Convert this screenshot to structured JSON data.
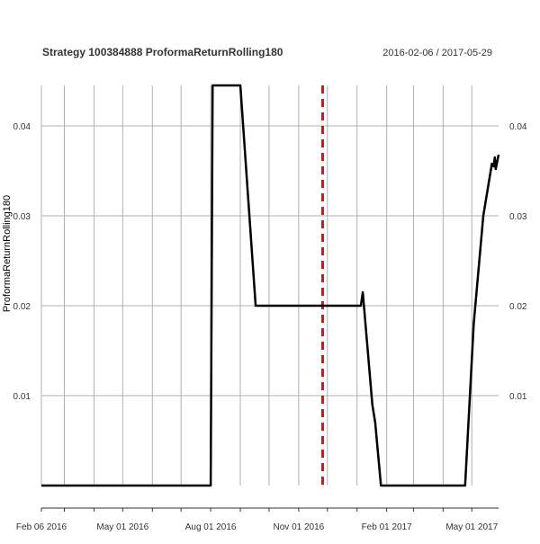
{
  "chart_data": {
    "type": "line",
    "title": "Strategy 100384888 ProformaReturnRolling180",
    "date_range": "2016-02-06 / 2017-05-29",
    "ylabel": "ProformaReturnRolling180",
    "xlabel": "",
    "x_start": "2016-02-06",
    "x_end": "2017-05-29",
    "ylim": [
      0.0,
      0.0445
    ],
    "y_ticks": [
      0.01,
      0.02,
      0.03,
      0.04
    ],
    "y_tick_labels": [
      "0.01",
      "0.02",
      "0.03",
      "0.04"
    ],
    "x_ticks": [
      {
        "date": "2016-02-06",
        "label": "Feb 06 2016"
      },
      {
        "date": "2016-05-01",
        "label": "May 01 2016"
      },
      {
        "date": "2016-08-01",
        "label": "Aug 01 2016"
      },
      {
        "date": "2016-11-01",
        "label": "Nov 01 2016"
      },
      {
        "date": "2017-02-01",
        "label": "Feb 01 2017"
      },
      {
        "date": "2017-05-01",
        "label": "May 01 2017"
      }
    ],
    "minor_gridlines": [
      "2016-03-01",
      "2016-04-01",
      "2016-06-01",
      "2016-07-01",
      "2016-09-01",
      "2016-10-01",
      "2016-12-01",
      "2017-01-01",
      "2017-03-01",
      "2017-04-01"
    ],
    "grid": true,
    "vline": {
      "date": "2016-11-26",
      "color": "#dd1111",
      "style": "dashed"
    },
    "series": [
      {
        "color": "#000000",
        "points": [
          {
            "x": "2016-02-06",
            "y": 0.0
          },
          {
            "x": "2016-08-01",
            "y": 0.0
          },
          {
            "x": "2016-08-02",
            "y": 0.022
          },
          {
            "x": "2016-08-03",
            "y": 0.0445
          },
          {
            "x": "2016-09-01",
            "y": 0.0445
          },
          {
            "x": "2016-09-17",
            "y": 0.02
          },
          {
            "x": "2016-12-01",
            "y": 0.02
          },
          {
            "x": "2017-01-05",
            "y": 0.02
          },
          {
            "x": "2017-01-07",
            "y": 0.0215
          },
          {
            "x": "2017-01-09",
            "y": 0.019
          },
          {
            "x": "2017-01-17",
            "y": 0.009
          },
          {
            "x": "2017-01-20",
            "y": 0.007
          },
          {
            "x": "2017-01-26",
            "y": 0.0
          },
          {
            "x": "2017-04-24",
            "y": 0.0
          },
          {
            "x": "2017-05-03",
            "y": 0.018
          },
          {
            "x": "2017-05-13",
            "y": 0.03
          },
          {
            "x": "2017-05-22",
            "y": 0.0358
          },
          {
            "x": "2017-05-24",
            "y": 0.0355
          },
          {
            "x": "2017-05-25",
            "y": 0.0365
          },
          {
            "x": "2017-05-26",
            "y": 0.0352
          },
          {
            "x": "2017-05-29",
            "y": 0.0368
          }
        ]
      }
    ]
  }
}
